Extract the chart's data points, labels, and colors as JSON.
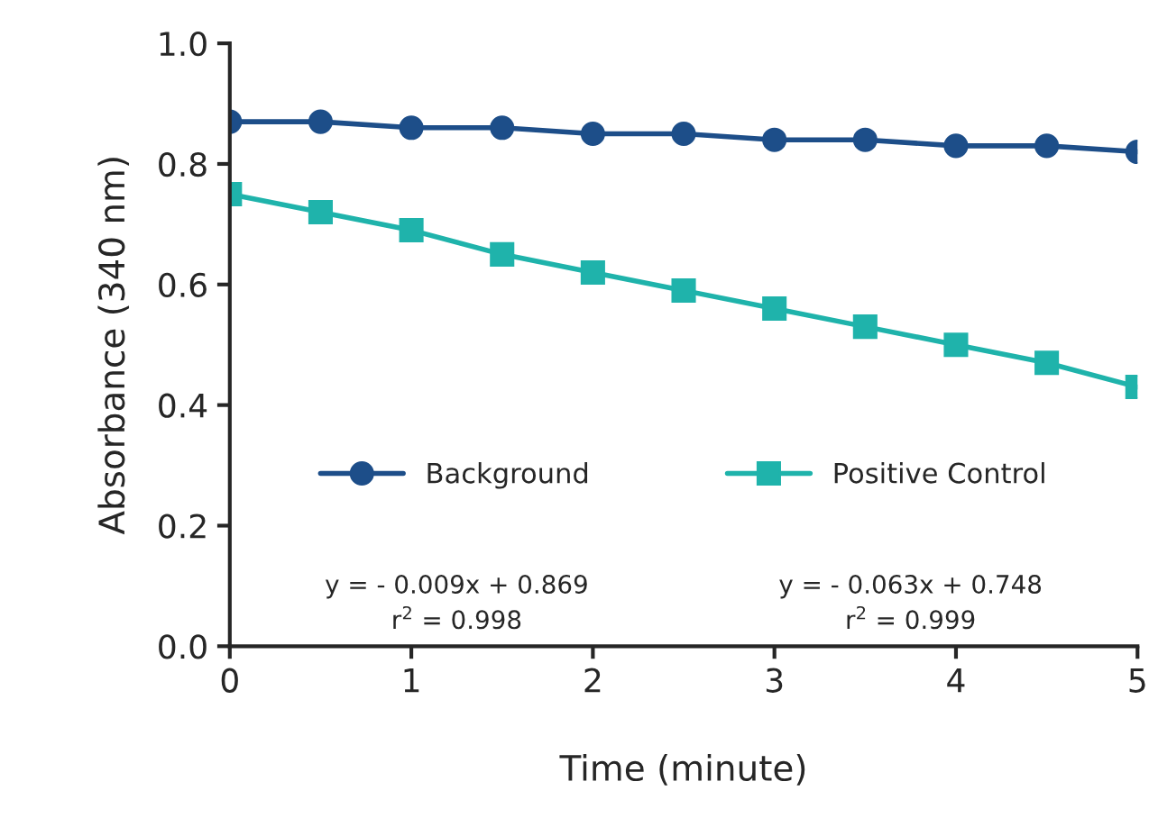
{
  "chart_data": {
    "type": "line",
    "xlabel": "Time (minute)",
    "ylabel": "Absorbance (340 nm)",
    "x": [
      0,
      0.5,
      1,
      1.5,
      2,
      2.5,
      3,
      3.5,
      4,
      4.5,
      5
    ],
    "series": [
      {
        "name": "Background",
        "color": "#1d4e89",
        "marker": "circle",
        "values": [
          0.87,
          0.87,
          0.86,
          0.86,
          0.85,
          0.85,
          0.84,
          0.84,
          0.83,
          0.83,
          0.82
        ]
      },
      {
        "name": "Positive Control",
        "color": "#1fb3ab",
        "marker": "square",
        "values": [
          0.75,
          0.72,
          0.69,
          0.65,
          0.62,
          0.59,
          0.56,
          0.53,
          0.5,
          0.47,
          0.43
        ]
      }
    ],
    "annotations": [
      "y = - 0.009x + 0.869\nr$^{2}$ = 0.998",
      "y = - 0.063x + 0.748\nr$^{2}$ = 0.999"
    ],
    "xlim": [
      0,
      5
    ],
    "xticks": [
      0,
      1,
      2,
      3,
      4,
      5
    ],
    "ylim": [
      0,
      1
    ],
    "yticks": [
      {
        "value": 0,
        "label": "0.0"
      },
      {
        "value": 0.2,
        "label": "0.2"
      },
      {
        "value": 0.4,
        "label": "0.4"
      },
      {
        "value": 0.6,
        "label": "0.6"
      },
      {
        "value": 0.8,
        "label": "0.8"
      },
      {
        "value": 1,
        "label": "1.0"
      }
    ],
    "legend": "bottom",
    "grid": false,
    "line_style": "solid"
  }
}
